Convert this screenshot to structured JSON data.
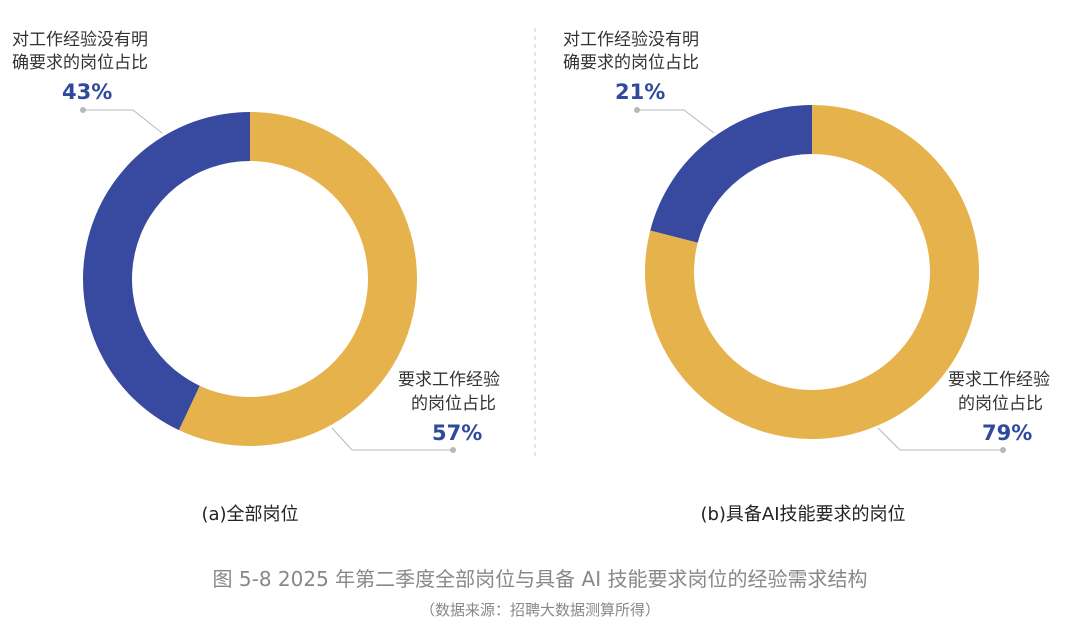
{
  "chart_data": [
    {
      "type": "pie",
      "variant": "donut",
      "caption": "(a)全部岗位",
      "slices": [
        {
          "label": "对工作经验没有明确要求的岗位占比",
          "label_lines": [
            "对工作经验没有明",
            "确要求的岗位占比"
          ],
          "value": 43,
          "display": "43%",
          "color": "#374a9f"
        },
        {
          "label": "要求工作经验的岗位占比",
          "label_lines": [
            "要求工作经验",
            "的岗位占比"
          ],
          "value": 57,
          "display": "57%",
          "color": "#e5b24c"
        }
      ]
    },
    {
      "type": "pie",
      "variant": "donut",
      "caption": "(b)具备AI技能要求的岗位",
      "slices": [
        {
          "label": "对工作经验没有明确要求的岗位占比",
          "label_lines": [
            "对工作经验没有明",
            "确要求的岗位占比"
          ],
          "value": 21,
          "display": "21%",
          "color": "#374a9f"
        },
        {
          "label": "要求工作经验的岗位占比",
          "label_lines": [
            "要求工作经验",
            "的岗位占比"
          ],
          "value": 79,
          "display": "79%",
          "color": "#e5b24c"
        }
      ]
    }
  ],
  "figure": {
    "title": "图 5-8  2025 年第二季度全部岗位与具备 AI 技能要求岗位的经验需求结构",
    "source": "（数据来源：招聘大数据测算所得）"
  },
  "colors": {
    "primary_blue": "#374a9f",
    "primary_gold": "#e5b24c",
    "percent_text": "#2f4a9c",
    "leader_line": "#b8b8b8",
    "divider": "#cccccc"
  }
}
